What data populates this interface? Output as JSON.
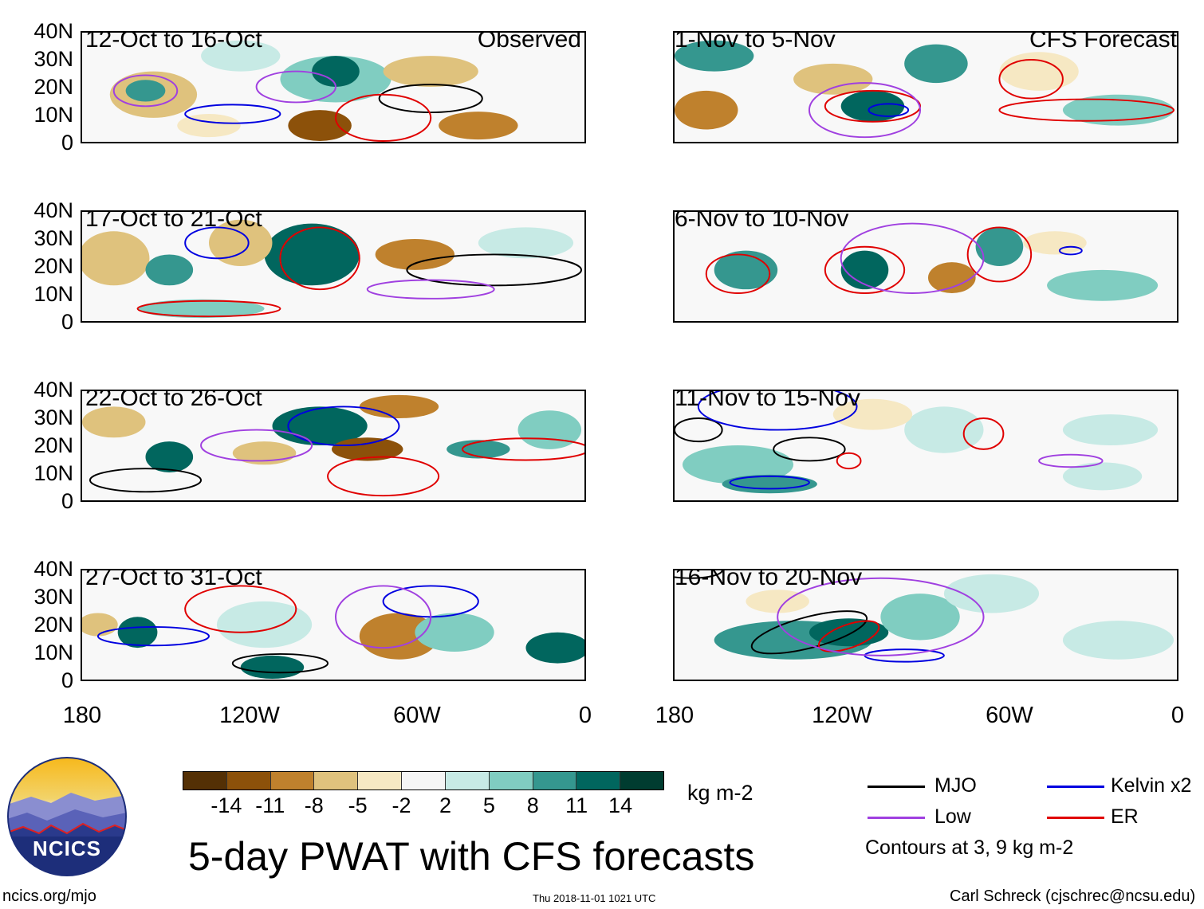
{
  "panels_left": [
    {
      "title": "12-Oct to 16-Oct",
      "label": "Observed"
    },
    {
      "title": "17-Oct to 21-Oct",
      "label": ""
    },
    {
      "title": "22-Oct to 26-Oct",
      "label": ""
    },
    {
      "title": "27-Oct to 31-Oct",
      "label": ""
    }
  ],
  "panels_right": [
    {
      "title": "1-Nov to 5-Nov",
      "label": "CFS Forecast"
    },
    {
      "title": "6-Nov to 10-Nov",
      "label": ""
    },
    {
      "title": "11-Nov to 15-Nov",
      "label": ""
    },
    {
      "title": "16-Nov to 20-Nov",
      "label": ""
    }
  ],
  "y_ticks": [
    "40N",
    "30N",
    "20N",
    "10N",
    "0"
  ],
  "x_ticks": [
    "180",
    "120W",
    "60W",
    "0"
  ],
  "colorbar": {
    "colors": [
      "#543005",
      "#8c510a",
      "#bf812d",
      "#dfc27d",
      "#f6e8c3",
      "#f5f5f5",
      "#c7eae5",
      "#80cdc1",
      "#35978f",
      "#01665e",
      "#003c30"
    ],
    "labels": [
      "-14",
      "-11",
      "-8",
      "-5",
      "-2",
      "2",
      "5",
      "8",
      "11",
      "14"
    ],
    "units": "kg m-2"
  },
  "legend": {
    "items": [
      {
        "label": "MJO",
        "color": "#000000"
      },
      {
        "label": "Kelvin x2",
        "color": "#0000e0"
      },
      {
        "label": "Low",
        "color": "#a040e0"
      },
      {
        "label": "ER",
        "color": "#e00000"
      }
    ],
    "note": "Contours at 3, 9 kg m-2"
  },
  "main_title": "5-day PWAT with CFS forecasts",
  "logo": {
    "text": "NCICS"
  },
  "footer": {
    "website": "ncics.org/mjo",
    "timestamp": "Thu 2018-11-01 1021 UTC",
    "author": "Carl Schreck (cjschrec@ncsu.edu)"
  }
}
